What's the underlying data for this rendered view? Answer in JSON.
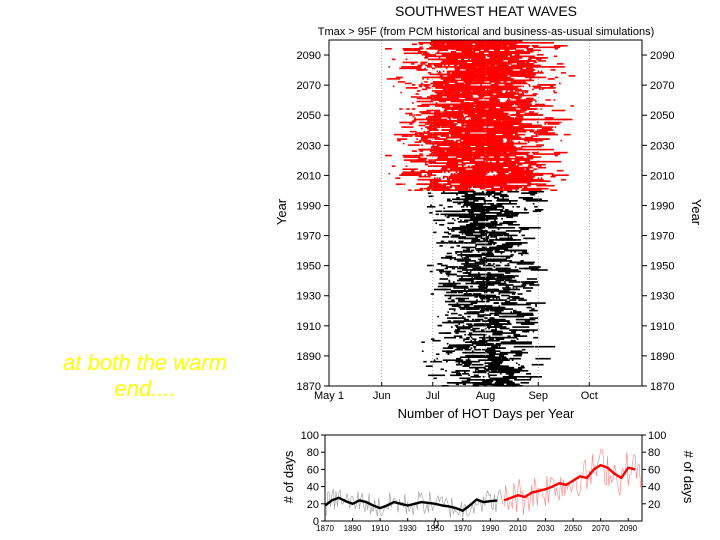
{
  "caption": {
    "line1": "at both the warm",
    "line2": "end...."
  },
  "colors": {
    "historical": "#000000",
    "projection": "#ff0000",
    "caption": "#ffff00",
    "reference_line": "#888888",
    "raw_series": "#999999",
    "raw_series_red": "#ff8080"
  },
  "chart_data": [
    {
      "type": "scatter",
      "title": "SOUTHWEST HEAT WAVES",
      "subtitle": "Tmax > 95F (from PCM historical and business-as-usual simulations)",
      "xlabel": "",
      "ylabel": "Year",
      "ylabel_right": "Year",
      "x_ticks": [
        "May 1",
        "Jun",
        "Jul",
        "Aug",
        "Sep",
        "Oct"
      ],
      "x_tick_day_of_year": [
        121,
        152,
        182,
        213,
        244,
        274
      ],
      "x_range_day_of_year": [
        121,
        305
      ],
      "y_ticks": [
        1870,
        1890,
        1910,
        1930,
        1950,
        1970,
        1990,
        2010,
        2030,
        2050,
        2070,
        2090
      ],
      "ylim": [
        1870,
        2100
      ],
      "reference_lines_day_of_year": [
        152,
        182,
        213,
        244,
        274
      ],
      "grid": false,
      "legend": "none",
      "series": [
        {
          "period": [
            1870,
            1999
          ],
          "color": "#000000",
          "season_center_day": 205,
          "season_spread_days": [
            170,
            250
          ],
          "spells_per_year_approx": 10
        },
        {
          "period": [
            2000,
            2099
          ],
          "color": "#ff0000",
          "season_center_day": 205,
          "season_spread_days": [
            150,
            265
          ],
          "spells_per_year_approx": 30
        }
      ]
    },
    {
      "type": "line",
      "title": "Number of HOT Days per Year",
      "ylabel": "# of days",
      "ylabel_right": "# of days",
      "ylim": [
        0,
        100
      ],
      "xlim": [
        1870,
        2100
      ],
      "y_ticks_left": [
        0,
        20,
        40,
        60,
        80,
        100
      ],
      "y_ticks_right": [
        20,
        40,
        60,
        80,
        100
      ],
      "x_ticks": [
        1870,
        1890,
        1910,
        1930,
        1950,
        1970,
        1990,
        2010,
        2030,
        2050,
        2070,
        2090
      ],
      "zero_label": "0",
      "grid": false,
      "legend": "none",
      "series": [
        {
          "x": [
            1870,
            1875,
            1880,
            1885,
            1890,
            1895,
            1900,
            1905,
            1910,
            1915,
            1920,
            1925,
            1930,
            1935,
            1940,
            1945,
            1950,
            1955,
            1960,
            1965,
            1970,
            1975,
            1980,
            1985,
            1990,
            1995
          ],
          "values": [
            18,
            24,
            27,
            23,
            20,
            24,
            22,
            18,
            15,
            18,
            22,
            20,
            18,
            20,
            22,
            21,
            20,
            18,
            17,
            15,
            12,
            18,
            25,
            22,
            23,
            24
          ],
          "color": "#000000"
        },
        {
          "x": [
            2000,
            2005,
            2010,
            2015,
            2020,
            2025,
            2030,
            2035,
            2040,
            2045,
            2050,
            2055,
            2060,
            2065,
            2070,
            2075,
            2080,
            2085,
            2090,
            2095
          ],
          "values": [
            24,
            27,
            30,
            28,
            33,
            35,
            37,
            40,
            44,
            42,
            47,
            52,
            50,
            60,
            65,
            62,
            55,
            50,
            62,
            60
          ],
          "color": "#ff0000"
        }
      ]
    }
  ]
}
